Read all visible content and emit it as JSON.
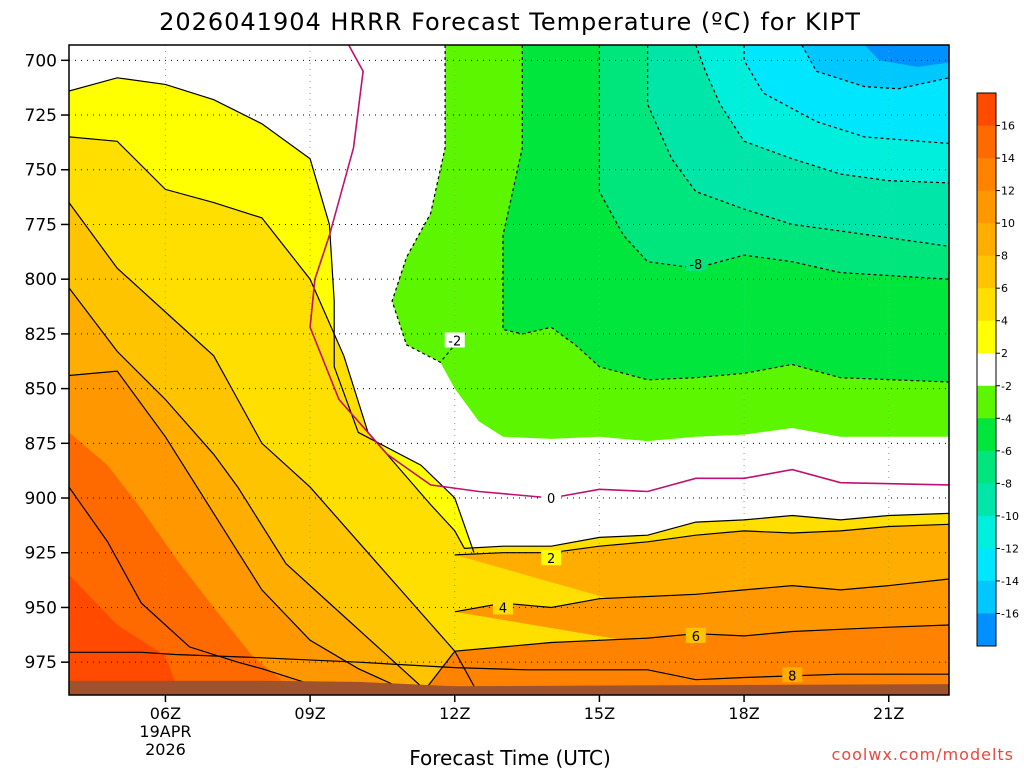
{
  "title": "2026041904 HRRR Forecast Temperature (ºC) for KIPT",
  "credit": "coolwx.com/modelts",
  "chart_data": {
    "type": "heatmap",
    "title": "2026041904 HRRR Forecast Temperature (ºC) for KIPT",
    "xlabel": "Forecast Time (UTC)",
    "ylabel": "",
    "x_range_hours": [
      4,
      22.25
    ],
    "y_range_hPa": [
      693,
      990
    ],
    "y_reversed": true,
    "x_ticks": [
      {
        "hour": 6,
        "label": "06Z",
        "sub": [
          "19APR",
          "2026"
        ]
      },
      {
        "hour": 9,
        "label": "09Z"
      },
      {
        "hour": 12,
        "label": "12Z"
      },
      {
        "hour": 15,
        "label": "15Z"
      },
      {
        "hour": 18,
        "label": "18Z"
      },
      {
        "hour": 21,
        "label": "21Z"
      }
    ],
    "y_ticks": [
      700,
      725,
      750,
      775,
      800,
      825,
      850,
      875,
      900,
      925,
      950,
      975
    ],
    "grid": true,
    "legend": "right colorbar",
    "colorbar": {
      "ticks": [
        "16",
        "14",
        "12",
        "10",
        "8",
        "6",
        "4",
        "2",
        "-2",
        "-4",
        "-6",
        "-8",
        "-10",
        "-12",
        "-14",
        "-16"
      ],
      "bands": [
        {
          "lo": 16,
          "hi": 18,
          "color": "#ff4a00"
        },
        {
          "lo": 14,
          "hi": 16,
          "color": "#ff6a00"
        },
        {
          "lo": 12,
          "hi": 14,
          "color": "#ff8200"
        },
        {
          "lo": 10,
          "hi": 12,
          "color": "#ff9800"
        },
        {
          "lo": 8,
          "hi": 10,
          "color": "#ffae00"
        },
        {
          "lo": 6,
          "hi": 8,
          "color": "#ffc400"
        },
        {
          "lo": 4,
          "hi": 6,
          "color": "#ffdf00"
        },
        {
          "lo": 2,
          "hi": 4,
          "color": "#ffff00"
        },
        {
          "lo": -2,
          "hi": 2,
          "color": "#ffffff"
        },
        {
          "lo": -4,
          "hi": -2,
          "color": "#5cf700"
        },
        {
          "lo": -6,
          "hi": -4,
          "color": "#00e63c"
        },
        {
          "lo": -8,
          "hi": -6,
          "color": "#00e67c"
        },
        {
          "lo": -10,
          "hi": -8,
          "color": "#00e6a8"
        },
        {
          "lo": -12,
          "hi": -10,
          "color": "#00eedc"
        },
        {
          "lo": -14,
          "hi": -12,
          "color": "#00e6ff"
        },
        {
          "lo": -16,
          "hi": -14,
          "color": "#00c8ff"
        },
        {
          "lo": -18,
          "hi": -16,
          "color": "#0090ff"
        }
      ]
    },
    "contours": [
      {
        "value": 8,
        "color": "#000000",
        "dashed": false,
        "label": "8",
        "label_at": [
          19.0,
          981.0
        ],
        "points": [
          [
            4,
            970.5
          ],
          [
            5.5,
            970.5
          ],
          [
            6.2,
            971.5
          ],
          [
            8,
            973
          ],
          [
            10,
            975
          ],
          [
            12,
            977.5
          ],
          [
            13.5,
            978.5
          ],
          [
            16,
            978.5
          ],
          [
            17,
            983
          ],
          [
            18,
            982
          ],
          [
            20,
            980.5
          ],
          [
            22.25,
            980.5
          ]
        ]
      },
      {
        "value": 6,
        "color": "#000000",
        "dashed": false,
        "label": "6",
        "label_at": [
          17.0,
          963.0
        ],
        "points": [
          [
            4,
            895
          ],
          [
            4.8,
            920
          ],
          [
            5.5,
            948
          ],
          [
            6.5,
            968
          ],
          [
            7.5,
            975
          ],
          [
            8,
            978
          ],
          [
            9,
            985
          ],
          [
            9.6,
            990
          ]
        ],
        "points2": [
          [
            11.3,
            990
          ],
          [
            12,
            970
          ],
          [
            13,
            968
          ],
          [
            14,
            966
          ],
          [
            15,
            965
          ],
          [
            16,
            964
          ],
          [
            17,
            962
          ],
          [
            18,
            963
          ],
          [
            19,
            961
          ],
          [
            20,
            960
          ],
          [
            21,
            959
          ],
          [
            22.25,
            958
          ]
        ]
      },
      {
        "value": 4,
        "color": "#000000",
        "dashed": false,
        "label": "4",
        "label_at": [
          13.0,
          950.0
        ],
        "points": [
          [
            4,
            844
          ],
          [
            5,
            842
          ],
          [
            6,
            872
          ],
          [
            7,
            907
          ],
          [
            8,
            942
          ],
          [
            9,
            965
          ],
          [
            10,
            978
          ],
          [
            11,
            988
          ],
          [
            11.5,
            990
          ]
        ],
        "points2": [
          [
            12,
            952
          ],
          [
            13,
            948
          ],
          [
            14,
            950
          ],
          [
            15,
            946
          ],
          [
            16,
            945
          ],
          [
            17,
            944
          ],
          [
            18,
            942
          ],
          [
            19,
            940
          ],
          [
            20,
            942
          ],
          [
            21,
            940
          ],
          [
            22.25,
            937
          ]
        ]
      },
      {
        "value": 2,
        "color": "#000000",
        "dashed": false,
        "label": "2",
        "label_at": [
          14.0,
          927.5
        ],
        "points": [
          [
            4,
            804
          ],
          [
            5,
            833
          ],
          [
            6,
            855
          ],
          [
            7,
            880
          ],
          [
            7.5,
            895
          ],
          [
            8.5,
            930
          ],
          [
            9.5,
            950
          ],
          [
            10.5,
            970
          ],
          [
            11.5,
            990
          ]
        ],
        "points2": [
          [
            12,
            926
          ],
          [
            13,
            925
          ],
          [
            14,
            925
          ],
          [
            15,
            922
          ],
          [
            16,
            920
          ],
          [
            17,
            917
          ],
          [
            18,
            915
          ],
          [
            19,
            916
          ],
          [
            20,
            915
          ],
          [
            21,
            913
          ],
          [
            22.25,
            912
          ]
        ]
      },
      {
        "value": 0,
        "color": "#000000",
        "dashed": false,
        "label": "",
        "label_at": [
          13.0,
          990.0
        ],
        "points": [
          [
            4,
            765
          ],
          [
            5,
            795
          ],
          [
            6,
            815
          ],
          [
            7,
            835
          ],
          [
            7.5,
            855
          ],
          [
            8,
            875
          ],
          [
            9,
            895
          ],
          [
            10,
            920
          ],
          [
            11,
            945
          ],
          [
            12,
            970
          ],
          [
            12.5,
            990
          ]
        ]
      },
      {
        "value": -1,
        "color": "#000000",
        "dashed": false,
        "label": "",
        "label_at": [
          6.0,
          990.0
        ],
        "points": [
          [
            4,
            735
          ],
          [
            5,
            737
          ],
          [
            6,
            759
          ],
          [
            7,
            765
          ],
          [
            8,
            772
          ],
          [
            9,
            800
          ],
          [
            9.7,
            835
          ],
          [
            10.2,
            870
          ],
          [
            11.5,
            903
          ],
          [
            12,
            915
          ],
          [
            12.2,
            923
          ],
          [
            13,
            922
          ],
          [
            14,
            922
          ],
          [
            15,
            918
          ],
          [
            16,
            917
          ],
          [
            17,
            911
          ],
          [
            18,
            910
          ],
          [
            19,
            908
          ],
          [
            20,
            910
          ],
          [
            21,
            908
          ],
          [
            22.25,
            907
          ]
        ]
      },
      {
        "value": -2,
        "color": "#000000",
        "dashed": false,
        "label": "",
        "label_at": [
          6.0,
          990.0
        ],
        "points": [
          [
            4,
            714
          ],
          [
            5,
            708
          ],
          [
            6,
            711
          ],
          [
            7,
            718
          ],
          [
            8,
            729
          ],
          [
            9,
            745
          ],
          [
            9.4,
            775
          ],
          [
            9.5,
            810
          ],
          [
            9.5,
            840
          ],
          [
            10,
            870
          ],
          [
            11.3,
            885
          ],
          [
            12,
            900
          ],
          [
            12.4,
            925
          ]
        ]
      },
      {
        "value": 0.5,
        "color": "#c01070",
        "dashed": false,
        "label": "0",
        "label_at": [
          14.0,
          900.0
        ],
        "points": [
          [
            9.8,
            693
          ],
          [
            10.1,
            705
          ],
          [
            9.9,
            740
          ],
          [
            9.4,
            780
          ],
          [
            9.1,
            800
          ],
          [
            9,
            822
          ],
          [
            9.6,
            855
          ],
          [
            10.6,
            880
          ],
          [
            11.5,
            894
          ],
          [
            12.5,
            897
          ],
          [
            14,
            900
          ],
          [
            15,
            896
          ],
          [
            16,
            897
          ],
          [
            17,
            891
          ],
          [
            18,
            891
          ],
          [
            19,
            887
          ],
          [
            20,
            893
          ],
          [
            22.25,
            894
          ]
        ]
      },
      {
        "value": -2,
        "color": "#000000",
        "dashed": true,
        "label": "-2",
        "label_at": [
          12.0,
          828.0
        ],
        "points": [
          [
            11.8,
            693
          ],
          [
            11.8,
            740
          ],
          [
            11.5,
            770
          ],
          [
            11,
            790
          ],
          [
            10.7,
            810
          ],
          [
            11,
            830
          ],
          [
            11.7,
            838
          ],
          [
            12,
            830
          ]
        ]
      },
      {
        "value": -2.5,
        "color": "#000000",
        "dashed": true,
        "label": "",
        "label_at": [
          13.0,
          990.0
        ],
        "points": [
          [
            13.4,
            693
          ],
          [
            13.4,
            740
          ],
          [
            13,
            780
          ],
          [
            13,
            823
          ],
          [
            13.4,
            825
          ],
          [
            14,
            822
          ],
          [
            14.5,
            830
          ],
          [
            15,
            840
          ],
          [
            16,
            846
          ],
          [
            17,
            845
          ],
          [
            18,
            843
          ],
          [
            19,
            839
          ],
          [
            20,
            845
          ],
          [
            22.25,
            847
          ]
        ]
      },
      {
        "value": -8,
        "color": "#000000",
        "dashed": true,
        "label": "-8",
        "label_at": [
          17.0,
          793.0
        ],
        "points": [
          [
            15,
            693
          ],
          [
            15,
            740
          ],
          [
            15,
            760
          ],
          [
            15.5,
            780
          ],
          [
            16,
            792
          ],
          [
            17,
            795
          ],
          [
            18,
            789
          ],
          [
            19,
            792
          ],
          [
            20,
            797
          ],
          [
            22.25,
            800
          ]
        ]
      },
      {
        "value": -10,
        "color": "#000000",
        "dashed": true,
        "label": "",
        "label_at": [
          13.0,
          990.0
        ],
        "points": [
          [
            16,
            693
          ],
          [
            16,
            720
          ],
          [
            16.5,
            745
          ],
          [
            17,
            760
          ],
          [
            18,
            768
          ],
          [
            19,
            775
          ],
          [
            20,
            778
          ],
          [
            22.25,
            785
          ]
        ]
      },
      {
        "value": -12,
        "color": "#000000",
        "dashed": true,
        "label": "",
        "label_at": [
          13.0,
          990.0
        ],
        "points": [
          [
            17,
            693
          ],
          [
            17.2,
            705
          ],
          [
            17.5,
            720
          ],
          [
            18,
            737
          ],
          [
            19,
            745
          ],
          [
            20,
            752
          ],
          [
            21,
            755
          ],
          [
            22.25,
            756
          ]
        ]
      },
      {
        "value": -14,
        "color": "#000000",
        "dashed": true,
        "label": "",
        "label_at": [
          13.0,
          990.0
        ],
        "points": [
          [
            18,
            693
          ],
          [
            18,
            700
          ],
          [
            18.4,
            715
          ],
          [
            19.5,
            728
          ],
          [
            20.5,
            735
          ],
          [
            22.25,
            738
          ]
        ]
      },
      {
        "value": -16,
        "color": "#000000",
        "dashed": true,
        "label": "",
        "label_at": [
          13.0,
          990.0
        ],
        "points": [
          [
            19.2,
            693
          ],
          [
            19.5,
            705
          ],
          [
            20.5,
            712
          ],
          [
            21.2,
            713
          ],
          [
            22.25,
            708
          ]
        ]
      }
    ]
  }
}
